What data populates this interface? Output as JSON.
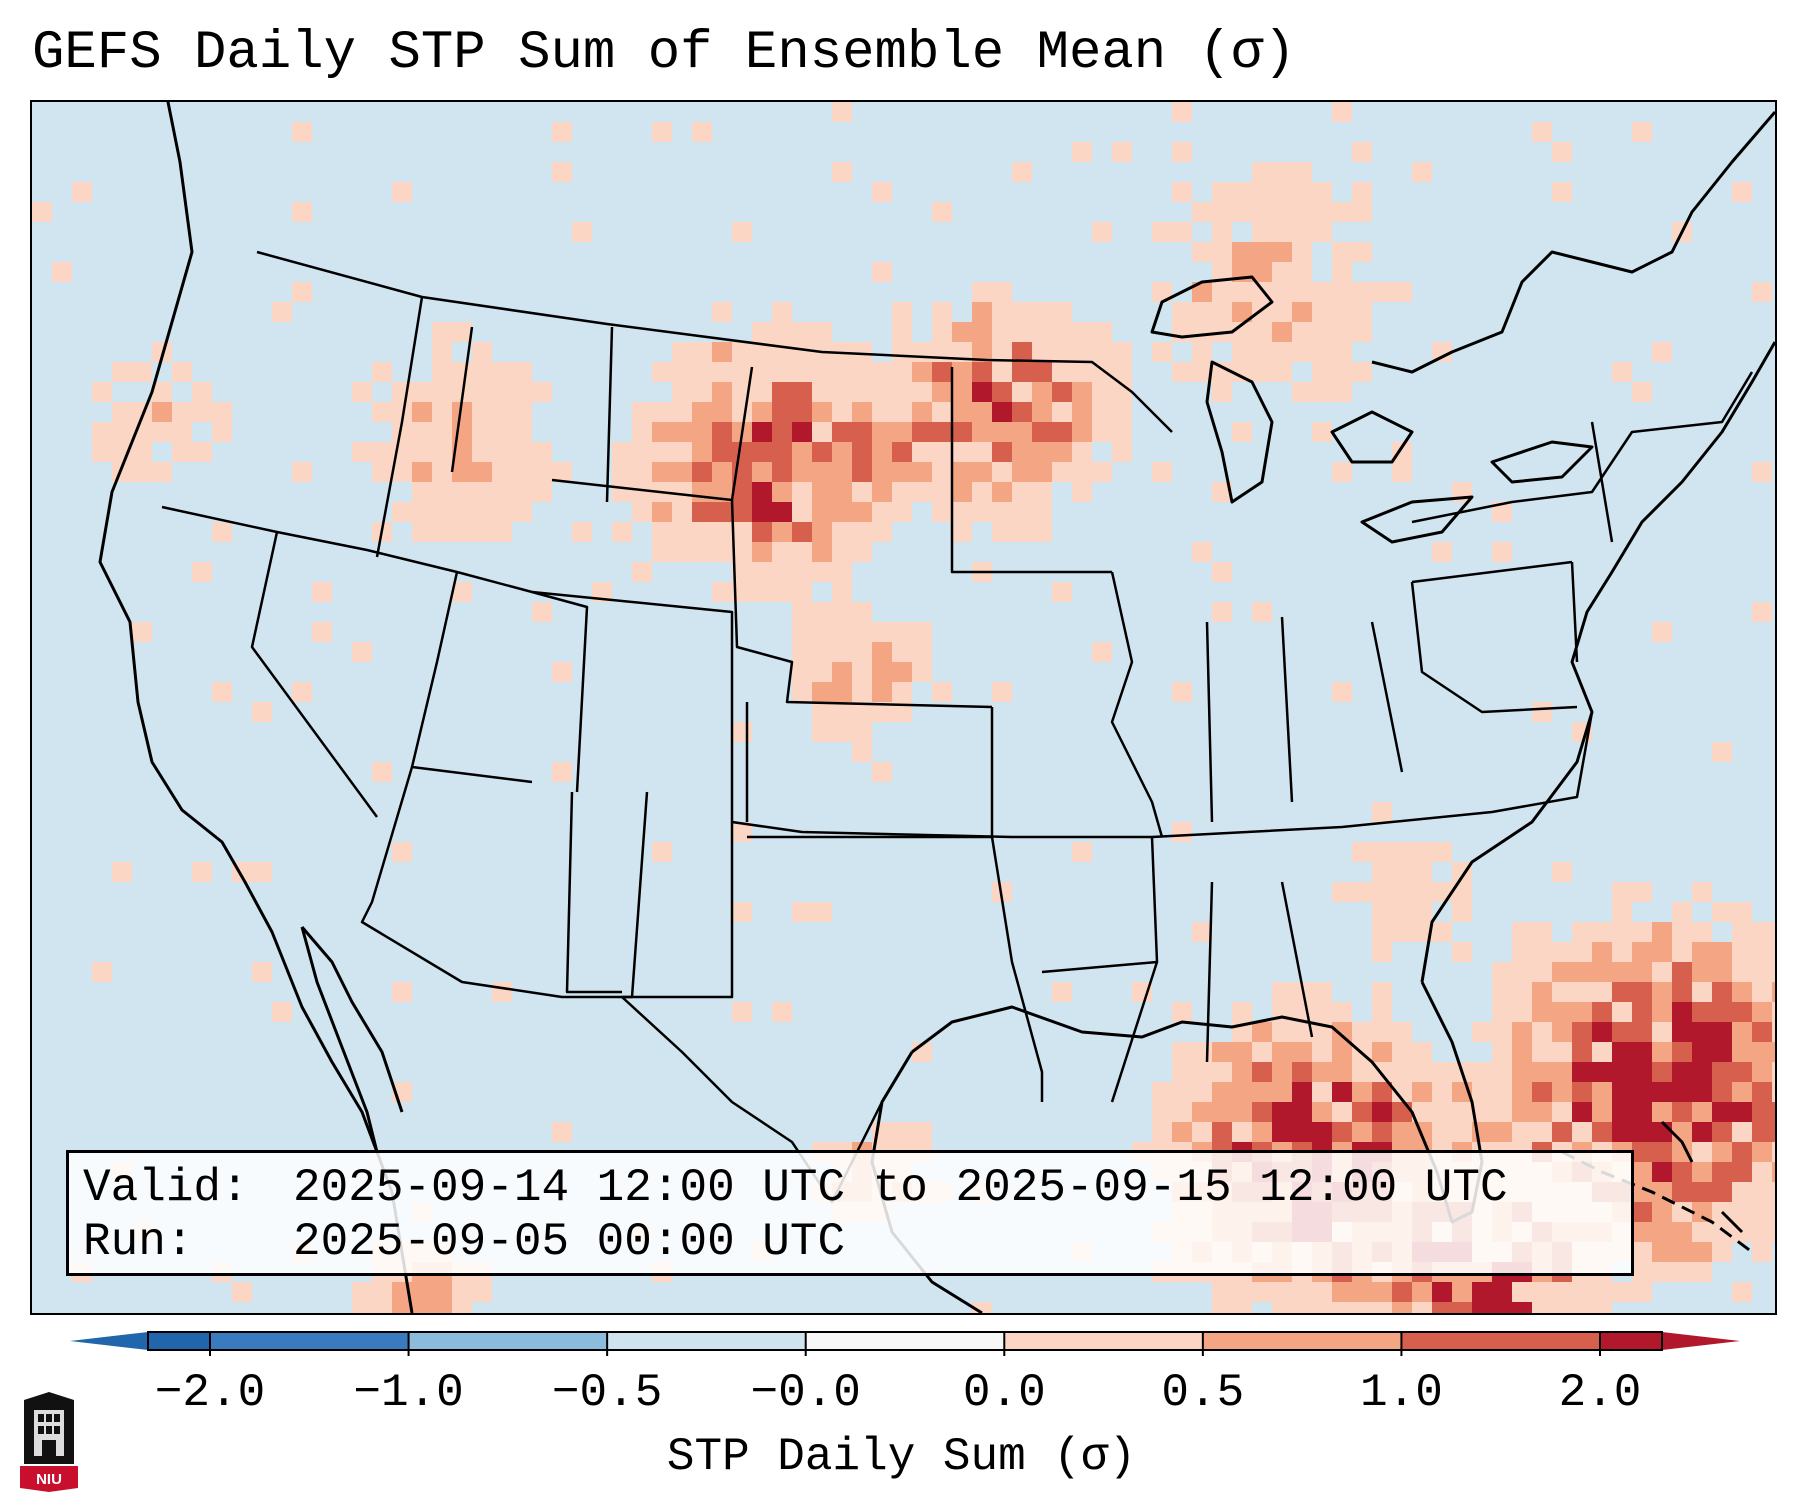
{
  "title": "GEFS Daily STP Sum of Ensemble Mean (σ)",
  "info": {
    "valid_label": "Valid:",
    "valid_value": "2025-09-14 12:00 UTC to 2025-09-15 12:00 UTC",
    "run_label": "Run:",
    "run_value": "2025-09-05 00:00 UTC"
  },
  "colorbar": {
    "label": "STP Daily Sum (σ)",
    "tick_labels": [
      "−2.0",
      "−1.0",
      "−0.5",
      "−0.0",
      "0.0",
      "0.5",
      "1.0",
      "2.0"
    ],
    "bin_colors": [
      "#3a7bbf",
      "#8cbcdc",
      "#cfe3ef",
      "#f7f7f7",
      "#fbd6c4",
      "#f4a583",
      "#d6604d",
      "#b2182b"
    ],
    "extend_colors": {
      "low": "#2166ac",
      "high": "#b2182b"
    }
  },
  "map": {
    "background_color": "#d1e5f0",
    "anomaly_legend": {
      "0.0-0.5": "#fbd6c4",
      "0.5-1.0": "#f4a583",
      "1.0-2.0": "#d6604d",
      "2.0+": "#b2182b"
    }
  },
  "logo": {
    "text": "NIU",
    "color": "#c8102e"
  }
}
